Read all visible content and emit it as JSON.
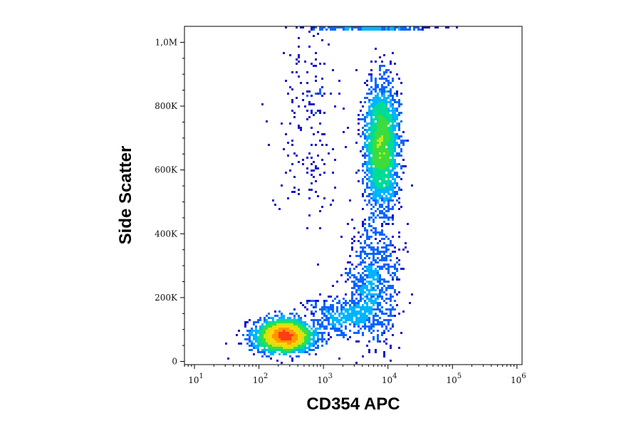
{
  "chart_data": {
    "type": "scatter",
    "plot_style": "flow-cytometry-density-dot-plot",
    "xlabel": "CD354 APC",
    "ylabel": "Side Scatter",
    "x_scale": "log",
    "y_scale": "linear",
    "xlim": [
      7,
      1200000
    ],
    "ylim": [
      -10000,
      1050000
    ],
    "x_ticks": [
      {
        "value": 10,
        "base": "10",
        "exp": "1"
      },
      {
        "value": 100,
        "base": "10",
        "exp": "2"
      },
      {
        "value": 1000,
        "base": "10",
        "exp": "3"
      },
      {
        "value": 10000,
        "base": "10",
        "exp": "4"
      },
      {
        "value": 100000,
        "base": "10",
        "exp": "5"
      },
      {
        "value": 1000000,
        "base": "10",
        "exp": "6"
      }
    ],
    "y_ticks": [
      {
        "value": 0,
        "label": "0"
      },
      {
        "value": 200000,
        "label": "200K"
      },
      {
        "value": 400000,
        "label": "400K"
      },
      {
        "value": 600000,
        "label": "600K"
      },
      {
        "value": 800000,
        "label": "800K"
      },
      {
        "value": 1000000,
        "label": "1,0M"
      }
    ],
    "density_colors": [
      "#1414c8",
      "#0a64ff",
      "#00b4ff",
      "#00dc96",
      "#3cdc3c",
      "#c8e61e",
      "#ffd700",
      "#ff9600",
      "#ff3c14"
    ],
    "populations": [
      {
        "name": "CD354-negative cluster",
        "x_center": 250,
        "x_log_spread": 0.22,
        "y_center": 80000,
        "y_spread": 25000,
        "count": 2600
      },
      {
        "name": "CD354-positive cluster",
        "x_center": 8000,
        "x_log_spread": 0.13,
        "y_center": 680000,
        "y_spread": 95000,
        "count": 2200
      },
      {
        "name": "intermediate bridge",
        "x_center": 6000,
        "x_log_spread": 0.2,
        "y_center": 250000,
        "y_spread": 100000,
        "count": 700
      },
      {
        "name": "low shoulder",
        "x_center": 2000,
        "x_log_spread": 0.3,
        "y_center": 140000,
        "y_spread": 30000,
        "count": 400
      },
      {
        "name": "upper left sparse",
        "x_center": 600,
        "x_log_spread": 0.25,
        "y_center": 750000,
        "y_spread": 180000,
        "count": 180
      },
      {
        "name": "saturation band",
        "x_center": 5000,
        "x_log_spread": 0.5,
        "y_center": 1045000,
        "y_spread": 3000,
        "count": 260
      }
    ]
  }
}
